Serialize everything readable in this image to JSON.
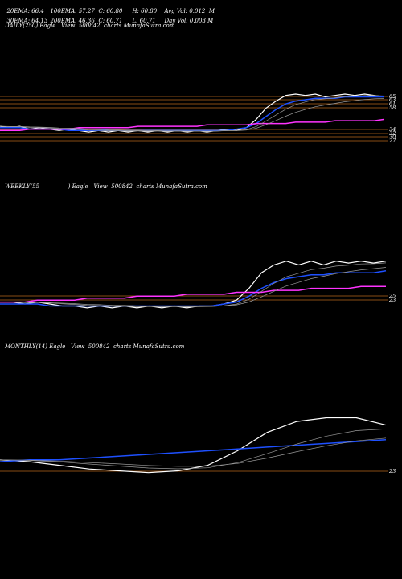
{
  "header": {
    "row1": [
      "20EMA: 66.4",
      "100EMA: 57.27",
      "C: 60.80",
      "H: 60.80",
      "Avg Vol: 0.012  M"
    ],
    "row2": [
      "30EMA: 64.13",
      "200EMA: 46.36",
      "C: 60.71",
      "L: 60.71",
      "Day Vol: 0.003 M"
    ]
  },
  "panels": {
    "daily": {
      "title": "DAILY(250) Eagle   View  500842  charts MunafaSutra.com"
    },
    "weekly": {
      "title": "WEEKLY(55                ) Eagle   View  500842  charts MunafaSutra.com"
    },
    "monthly": {
      "title": "MONTHLY(14) Eagle   View  500842  charts MunafaSutra.com"
    }
  },
  "chart_data": [
    {
      "type": "line",
      "panel": "daily",
      "price_levels": [
        "65",
        "63",
        "61",
        "58",
        "34",
        "32",
        "30",
        "27"
      ],
      "series": [
        {
          "color": "#ffffff",
          "values": [
            41,
            40,
            41,
            39,
            40,
            39,
            38,
            39,
            38,
            37,
            38,
            37,
            38,
            37,
            38,
            37,
            38,
            37,
            38,
            37,
            38,
            37,
            38,
            39,
            38,
            40,
            46,
            54,
            59,
            63,
            64,
            63,
            64,
            62,
            63,
            64,
            63,
            64,
            63,
            62
          ]
        },
        {
          "color": "#1e50ff",
          "values": [
            40,
            40,
            40,
            39,
            39,
            39,
            39,
            38,
            38,
            38,
            38,
            38,
            38,
            38,
            38,
            38,
            38,
            38,
            38,
            38,
            38,
            38,
            38,
            38,
            39,
            40,
            43,
            48,
            53,
            57,
            59,
            60,
            61,
            61,
            61,
            62,
            62,
            62,
            62,
            62
          ]
        },
        {
          "color": "#ff33ff",
          "values": [
            38,
            38,
            38,
            39,
            39,
            39,
            39,
            39,
            40,
            40,
            40,
            40,
            40,
            40,
            41,
            41,
            41,
            41,
            41,
            41,
            41,
            42,
            42,
            42,
            42,
            42,
            43,
            43,
            43,
            43,
            44,
            44,
            44,
            44,
            45,
            45,
            45,
            45,
            45,
            46
          ]
        }
      ]
    },
    {
      "type": "line",
      "panel": "weekly",
      "price_levels": [
        "25",
        "23"
      ],
      "series": [
        {
          "color": "#ffffff",
          "values": [
            33,
            33,
            32,
            33,
            32,
            31,
            31,
            30,
            31,
            30,
            31,
            30,
            31,
            30,
            31,
            30,
            31,
            31,
            32,
            34,
            40,
            48,
            52,
            54,
            52,
            54,
            52,
            54,
            53,
            54,
            53,
            54
          ]
        },
        {
          "color": "#1e50ff",
          "values": [
            32,
            32,
            32,
            32,
            31,
            31,
            31,
            31,
            31,
            31,
            31,
            31,
            31,
            31,
            31,
            31,
            31,
            31,
            32,
            33,
            36,
            40,
            43,
            45,
            46,
            47,
            47,
            48,
            48,
            48,
            48,
            49
          ]
        },
        {
          "color": "#ff33ff",
          "values": [
            33,
            33,
            33,
            34,
            34,
            34,
            34,
            35,
            35,
            35,
            35,
            36,
            36,
            36,
            36,
            37,
            37,
            37,
            37,
            38,
            38,
            38,
            39,
            39,
            39,
            40,
            40,
            40,
            40,
            41,
            41,
            41
          ]
        }
      ]
    },
    {
      "type": "line",
      "panel": "monthly",
      "price_levels": [
        "23"
      ],
      "series": [
        {
          "color": "#ffffff",
          "values": [
            25,
            24,
            22,
            20,
            19,
            18,
            19,
            22,
            30,
            40,
            46,
            48,
            48,
            44
          ]
        },
        {
          "color": "#1e50ff",
          "values": [
            24,
            25,
            25,
            26,
            27,
            28,
            29,
            30,
            31,
            32,
            33,
            34,
            35,
            36
          ]
        }
      ]
    }
  ]
}
